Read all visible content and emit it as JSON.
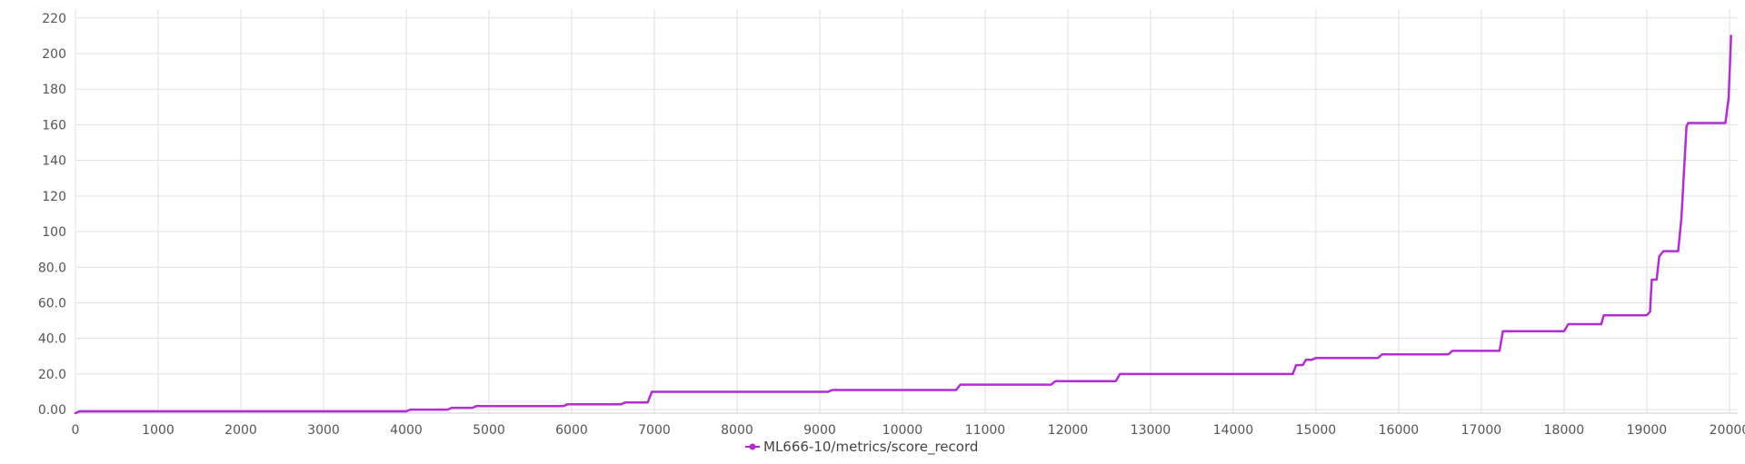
{
  "chart_data": {
    "type": "line",
    "title": "",
    "xlabel": "",
    "ylabel": "",
    "xlim": [
      0,
      20100
    ],
    "ylim": [
      -2,
      225
    ],
    "grid": true,
    "legend_position": "bottom-center",
    "x_ticks": [
      0,
      1000,
      2000,
      3000,
      4000,
      5000,
      6000,
      7000,
      8000,
      9000,
      10000,
      11000,
      12000,
      13000,
      14000,
      15000,
      16000,
      17000,
      18000,
      19000,
      20000
    ],
    "x_tick_labels": [
      "0",
      "1000",
      "2000",
      "3000",
      "4000",
      "5000",
      "6000",
      "7000",
      "8000",
      "9000",
      "10000",
      "11000",
      "12000",
      "13000",
      "14000",
      "15000",
      "16000",
      "17000",
      "18000",
      "19000",
      "20000"
    ],
    "y_ticks": [
      0,
      20,
      40,
      60,
      80,
      100,
      120,
      140,
      160,
      180,
      200,
      220
    ],
    "y_tick_labels": [
      "0.00",
      "20.0",
      "40.0",
      "60.0",
      "80.0",
      "100",
      "120",
      "140",
      "160",
      "180",
      "200",
      "220"
    ],
    "series": [
      {
        "name": "ML666-10/metrics/score_record",
        "color": "#b42cd6",
        "x": [
          0,
          50,
          4000,
          4050,
          4500,
          4550,
          4800,
          4850,
          5900,
          5950,
          6600,
          6650,
          6920,
          6970,
          9100,
          9150,
          10650,
          10700,
          11800,
          11850,
          12580,
          12630,
          14720,
          14760,
          14840,
          14880,
          14950,
          15000,
          15750,
          15800,
          16600,
          16650,
          17220,
          17260,
          18000,
          18050,
          18450,
          18480,
          19000,
          19040,
          19060,
          19120,
          19150,
          19200,
          19380,
          19420,
          19480,
          19500,
          19950,
          19990,
          20020
        ],
        "y": [
          -2,
          -1,
          -1,
          0,
          0,
          1,
          1,
          2,
          2,
          3,
          3,
          4,
          4,
          10,
          10,
          11,
          11,
          14,
          14,
          16,
          16,
          20,
          20,
          25,
          25,
          28,
          28,
          29,
          29,
          31,
          31,
          33,
          33,
          44,
          44,
          48,
          48,
          53,
          53,
          55,
          73,
          73,
          86,
          89,
          89,
          108,
          159,
          161,
          161,
          175,
          210
        ]
      }
    ]
  }
}
